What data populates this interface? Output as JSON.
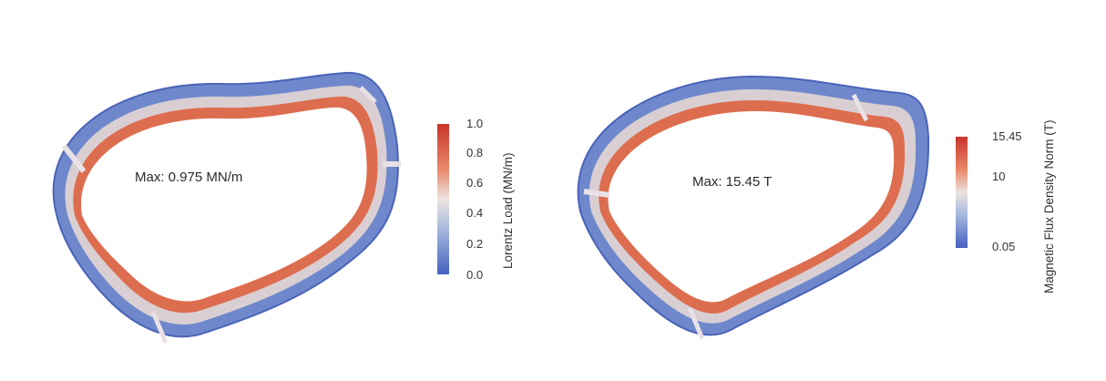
{
  "panels": [
    {
      "id": "lorentz",
      "max_label": "Max: 0.975 MN/m",
      "colorbar": {
        "title": "Lorentz Load (MN/m)",
        "ticks": [
          "1.0",
          "0.8",
          "0.6",
          "0.4",
          "0.2",
          "0.0"
        ],
        "range": [
          0.0,
          1.0
        ]
      }
    },
    {
      "id": "flux",
      "max_label": "Max: 15.45 T",
      "colorbar": {
        "title": "Magnetic Flux Density Norm (T)",
        "ticks": [
          "15.45",
          "10",
          "0.05"
        ],
        "range": [
          0.05,
          15.45
        ]
      }
    }
  ],
  "colors": {
    "high": "#c8342a",
    "mid_high": "#e8896a",
    "mid": "#ece4e0",
    "mid_low": "#9fb4dc",
    "low": "#4660c0"
  }
}
